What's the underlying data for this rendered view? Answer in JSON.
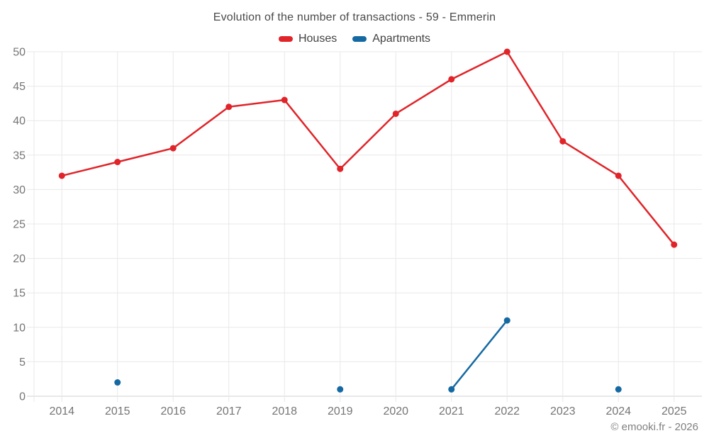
{
  "title": "Evolution of the number of transactions - 59 - Emmerin",
  "legend": {
    "items": [
      {
        "label": "Houses",
        "color": "#e02429"
      },
      {
        "label": "Apartments",
        "color": "#1569a2"
      }
    ]
  },
  "footer": {
    "copyright": "© emooki.fr - 2026"
  },
  "chart_data": {
    "type": "line",
    "title": "Evolution of the number of transactions - 59 - Emmerin",
    "x": [
      2014,
      2015,
      2016,
      2017,
      2018,
      2019,
      2020,
      2021,
      2022,
      2023,
      2024,
      2025
    ],
    "series": [
      {
        "name": "Houses",
        "color": "#e02429",
        "values": [
          32,
          34,
          36,
          42,
          43,
          33,
          41,
          46,
          50,
          37,
          32,
          22
        ]
      },
      {
        "name": "Apartments",
        "color": "#1569a2",
        "values": [
          null,
          2,
          null,
          null,
          null,
          1,
          null,
          1,
          11,
          null,
          1,
          null
        ]
      }
    ],
    "xlabel": "",
    "ylabel": "",
    "ylim": [
      0,
      50
    ],
    "ytick_step": 5,
    "grid": true,
    "legend_position": "top"
  },
  "style": {
    "background": "#ffffff",
    "grid_color": "#e8e8e8",
    "axis_color": "#d2d2d2",
    "tick_label_color": "#757575",
    "title_color": "#4a4a4a",
    "legend_text_color": "#424242",
    "footer_color": "#808080"
  }
}
